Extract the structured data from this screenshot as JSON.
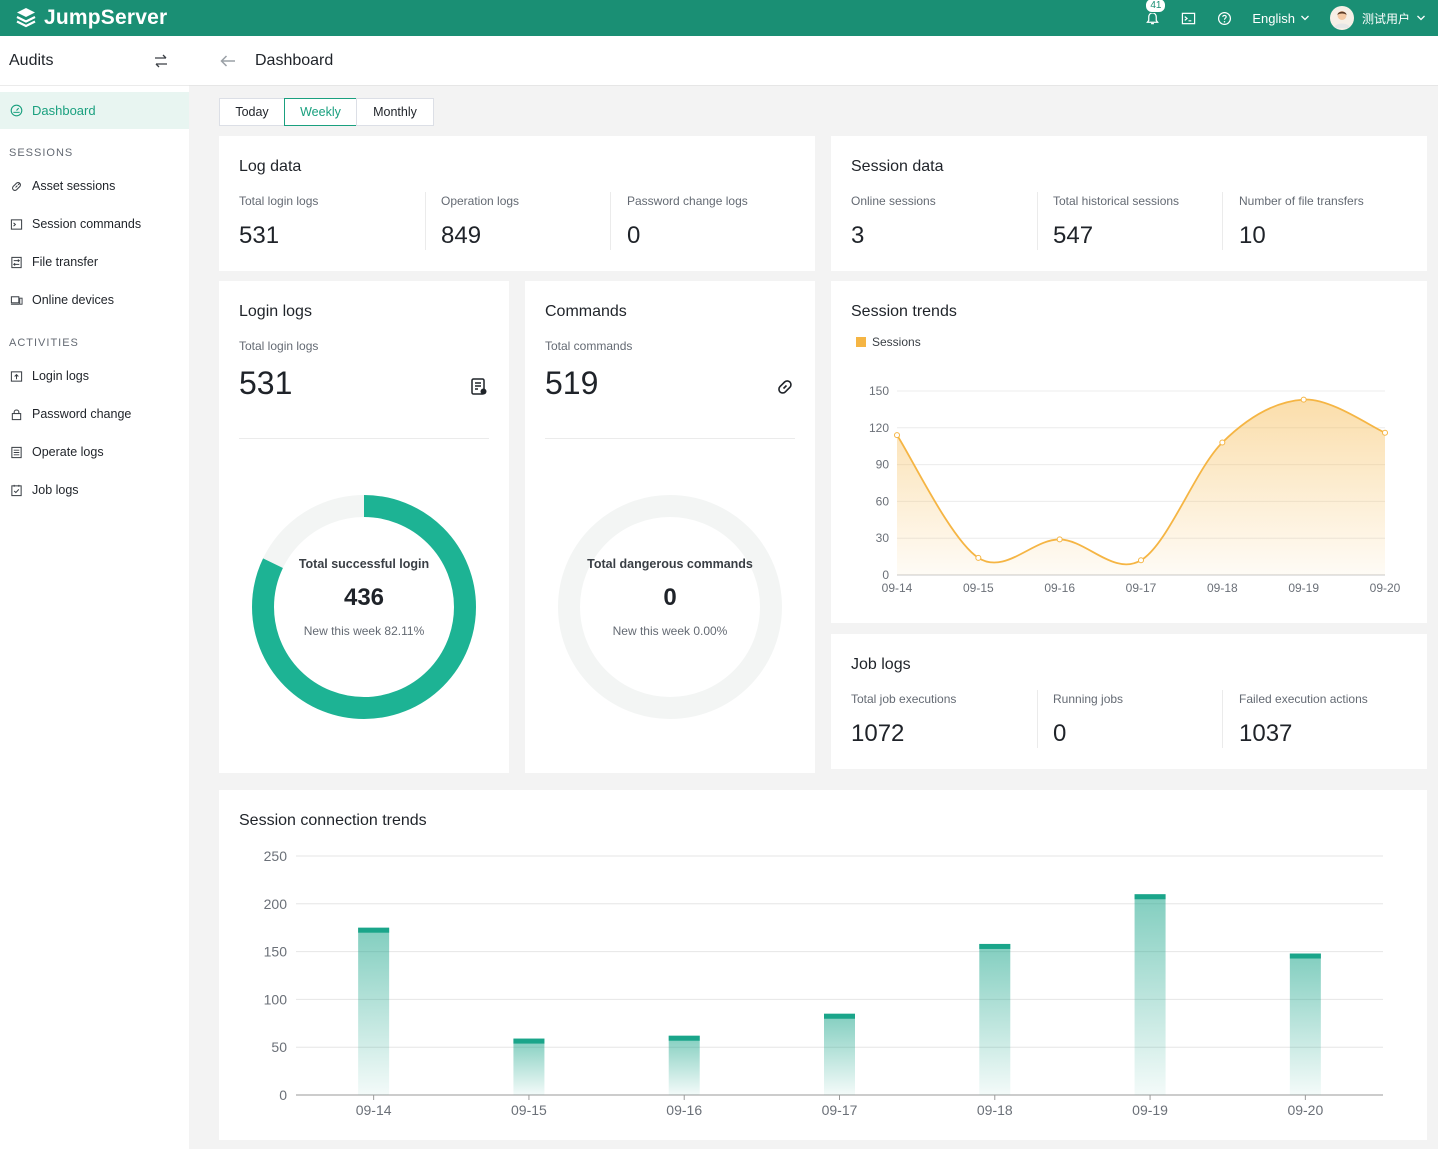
{
  "app": {
    "name": "JumpServer"
  },
  "topbar": {
    "notification_count": "41",
    "language": "English",
    "user_name": "测试用户"
  },
  "sidebar": {
    "title": "Audits",
    "active": "Dashboard",
    "section_sessions": "SESSIONS",
    "sessions_items": [
      "Asset sessions",
      "Session commands",
      "File transfer",
      "Online devices"
    ],
    "section_activities": "ACTIVITIES",
    "activities_items": [
      "Login logs",
      "Password change",
      "Operate logs",
      "Job logs"
    ]
  },
  "header": {
    "title": "Dashboard"
  },
  "range_tabs": {
    "today": "Today",
    "weekly": "Weekly",
    "monthly": "Monthly",
    "selected": "Weekly"
  },
  "log_data": {
    "title": "Log data",
    "stats": [
      {
        "label": "Total login logs",
        "value": "531"
      },
      {
        "label": "Operation logs",
        "value": "849"
      },
      {
        "label": "Password change logs",
        "value": "0"
      }
    ]
  },
  "session_data": {
    "title": "Session data",
    "stats": [
      {
        "label": "Online sessions",
        "value": "3"
      },
      {
        "label": "Total historical sessions",
        "value": "547"
      },
      {
        "label": "Number of file transfers",
        "value": "10"
      }
    ]
  },
  "login_logs": {
    "title": "Login logs",
    "label": "Total login logs",
    "value": "531",
    "ring_title": "Total successful login",
    "ring_value": "436",
    "ring_sub": "New this week 82.11%",
    "ring_fraction": 0.8211
  },
  "commands": {
    "title": "Commands",
    "label": "Total commands",
    "value": "519",
    "ring_title": "Total dangerous commands",
    "ring_value": "0",
    "ring_sub": "New this week 0.00%",
    "ring_fraction": 0
  },
  "job_logs": {
    "title": "Job logs",
    "stats": [
      {
        "label": "Total job executions",
        "value": "1072"
      },
      {
        "label": "Running jobs",
        "value": "0"
      },
      {
        "label": "Failed execution actions",
        "value": "1037"
      }
    ]
  },
  "session_trends_title": "Session trends",
  "session_connection_title": "Session connection trends",
  "chart_data": [
    {
      "type": "area",
      "title": "Session trends",
      "legend": [
        "Sessions"
      ],
      "legend_position": "top-left",
      "categories": [
        "09-14",
        "09-15",
        "09-16",
        "09-17",
        "09-18",
        "09-19",
        "09-20"
      ],
      "series": [
        {
          "name": "Sessions",
          "values": [
            114,
            14,
            29,
            12,
            108,
            143,
            116
          ]
        }
      ],
      "ylim": [
        0,
        150
      ],
      "yticks": [
        0,
        30,
        60,
        90,
        120,
        150
      ],
      "grid": true,
      "color": "#f5b544"
    },
    {
      "type": "bar",
      "title": "Session connection trends",
      "categories": [
        "09-14",
        "09-15",
        "09-16",
        "09-17",
        "09-18",
        "09-19",
        "09-20"
      ],
      "values": [
        175,
        59,
        62,
        85,
        158,
        210,
        148
      ],
      "ylim": [
        0,
        250
      ],
      "yticks": [
        0,
        50,
        100,
        150,
        200,
        250
      ],
      "grid": true,
      "color": "#1aa58a"
    }
  ]
}
